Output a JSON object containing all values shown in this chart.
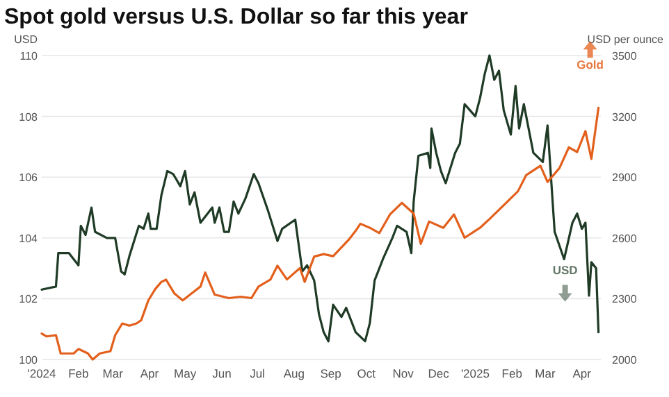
{
  "chart_data": {
    "type": "line",
    "title": "Spot gold versus U.S. Dollar so far this year",
    "ylabel": "USD",
    "y2label": "USD per ounce",
    "grid": "y",
    "xlim": [
      "2024-01-01",
      "2025-04-17"
    ],
    "xticks": [
      {
        "value": "2024-01-01",
        "label": "'2024"
      },
      {
        "value": "2024-02-01",
        "label": "Feb"
      },
      {
        "value": "2024-03-01",
        "label": "Mar"
      },
      {
        "value": "2024-04-01",
        "label": "Apr"
      },
      {
        "value": "2024-05-01",
        "label": "May"
      },
      {
        "value": "2024-06-01",
        "label": "Jun"
      },
      {
        "value": "2024-07-01",
        "label": "Jul"
      },
      {
        "value": "2024-08-01",
        "label": "Aug"
      },
      {
        "value": "2024-09-01",
        "label": "Sep"
      },
      {
        "value": "2024-10-01",
        "label": "Oct"
      },
      {
        "value": "2024-11-01",
        "label": "Nov"
      },
      {
        "value": "2024-12-01",
        "label": "Dec"
      },
      {
        "value": "2025-01-01",
        "label": "'2025"
      },
      {
        "value": "2025-02-01",
        "label": "Feb"
      },
      {
        "value": "2025-03-01",
        "label": "Mar"
      },
      {
        "value": "2025-04-01",
        "label": "Apr"
      }
    ],
    "ylim": [
      100,
      110
    ],
    "yticks": [
      100,
      102,
      104,
      106,
      108,
      110
    ],
    "y2lim": [
      2000,
      3500
    ],
    "y2ticks": [
      2000,
      2300,
      2600,
      2900,
      3200,
      3500
    ],
    "series": [
      {
        "name": "USD",
        "color": "#1f3b26",
        "x": [
          "2024-01-01",
          "2024-01-13",
          "2024-01-15",
          "2024-01-24",
          "2024-02-01",
          "2024-02-03",
          "2024-02-07",
          "2024-02-12",
          "2024-02-15",
          "2024-02-25",
          "2024-03-03",
          "2024-03-08",
          "2024-03-11",
          "2024-03-15",
          "2024-03-23",
          "2024-03-27",
          "2024-03-31",
          "2024-04-02",
          "2024-04-07",
          "2024-04-11",
          "2024-04-16",
          "2024-04-21",
          "2024-04-27",
          "2024-05-01",
          "2024-05-05",
          "2024-05-09",
          "2024-05-14",
          "2024-05-24",
          "2024-05-26",
          "2024-05-30",
          "2024-06-03",
          "2024-06-07",
          "2024-06-11",
          "2024-06-15",
          "2024-06-21",
          "2024-06-28",
          "2024-07-02",
          "2024-07-10",
          "2024-07-18",
          "2024-07-22",
          "2024-08-02",
          "2024-08-08",
          "2024-08-12",
          "2024-08-18",
          "2024-08-22",
          "2024-08-26",
          "2024-08-30",
          "2024-09-03",
          "2024-09-10",
          "2024-09-14",
          "2024-09-22",
          "2024-09-30",
          "2024-10-04",
          "2024-10-08",
          "2024-10-15",
          "2024-10-23",
          "2024-10-27",
          "2024-11-04",
          "2024-11-08",
          "2024-11-10",
          "2024-11-14",
          "2024-11-22",
          "2024-11-24",
          "2024-11-25",
          "2024-11-29",
          "2024-12-03",
          "2024-12-07",
          "2024-12-15",
          "2024-12-19",
          "2024-12-23",
          "2025-01-01",
          "2025-01-05",
          "2025-01-09",
          "2025-01-13",
          "2025-01-17",
          "2025-01-21",
          "2025-01-25",
          "2025-01-31",
          "2025-02-04",
          "2025-02-07",
          "2025-02-11",
          "2025-02-19",
          "2025-02-27",
          "2025-03-03",
          "2025-03-09",
          "2025-03-17",
          "2025-03-24",
          "2025-03-28",
          "2025-04-01",
          "2025-04-04",
          "2025-04-07",
          "2025-04-09",
          "2025-04-13",
          "2025-04-15"
        ],
        "values": [
          102.3,
          102.4,
          103.5,
          103.5,
          103.1,
          104.4,
          104.1,
          105.0,
          104.2,
          104.0,
          104.0,
          102.9,
          102.8,
          103.4,
          104.4,
          104.3,
          104.8,
          104.3,
          104.3,
          105.4,
          106.2,
          106.1,
          105.7,
          106.2,
          105.1,
          105.5,
          104.5,
          105.0,
          104.5,
          105.0,
          104.2,
          104.2,
          105.2,
          104.8,
          105.3,
          106.1,
          105.8,
          104.9,
          103.9,
          104.3,
          104.6,
          102.9,
          103.1,
          102.6,
          101.5,
          100.9,
          100.6,
          101.8,
          101.4,
          101.7,
          100.9,
          100.6,
          101.2,
          102.6,
          103.3,
          104.0,
          104.4,
          104.2,
          103.5,
          105.2,
          106.7,
          106.8,
          106.3,
          107.6,
          106.8,
          106.2,
          105.8,
          106.8,
          107.1,
          108.4,
          108.0,
          108.6,
          109.4,
          110.0,
          109.2,
          109.5,
          108.2,
          107.4,
          109.0,
          107.6,
          108.4,
          106.8,
          106.5,
          107.7,
          104.2,
          103.3,
          104.5,
          104.8,
          104.3,
          104.5,
          102.1,
          103.2,
          103.0,
          100.9
        ]
      },
      {
        "name": "Gold",
        "color": "#e35f1c",
        "axis": "y2",
        "x": [
          "2024-01-01",
          "2024-01-05",
          "2024-01-13",
          "2024-01-17",
          "2024-01-28",
          "2024-02-01",
          "2024-02-09",
          "2024-02-13",
          "2024-02-19",
          "2024-02-28",
          "2024-03-03",
          "2024-03-09",
          "2024-03-15",
          "2024-03-21",
          "2024-03-25",
          "2024-03-31",
          "2024-04-06",
          "2024-04-11",
          "2024-04-15",
          "2024-04-22",
          "2024-04-29",
          "2024-05-09",
          "2024-05-14",
          "2024-05-18",
          "2024-05-26",
          "2024-06-07",
          "2024-06-17",
          "2024-06-26",
          "2024-07-02",
          "2024-07-12",
          "2024-07-18",
          "2024-07-26",
          "2024-08-06",
          "2024-08-10",
          "2024-08-18",
          "2024-08-26",
          "2024-09-03",
          "2024-09-16",
          "2024-09-22",
          "2024-09-26",
          "2024-10-04",
          "2024-10-12",
          "2024-10-21",
          "2024-10-31",
          "2024-11-10",
          "2024-11-16",
          "2024-11-23",
          "2024-12-05",
          "2024-12-14",
          "2024-12-23",
          "2025-01-05",
          "2025-01-13",
          "2025-01-27",
          "2025-02-06",
          "2025-02-13",
          "2025-02-25",
          "2025-03-03",
          "2025-03-13",
          "2025-03-21",
          "2025-03-28",
          "2025-04-04",
          "2025-04-09",
          "2025-04-15"
        ],
        "values": [
          2128,
          2114,
          2120,
          2030,
          2030,
          2052,
          2030,
          2000,
          2030,
          2041,
          2120,
          2178,
          2167,
          2178,
          2194,
          2292,
          2349,
          2383,
          2394,
          2326,
          2292,
          2337,
          2360,
          2429,
          2320,
          2303,
          2310,
          2303,
          2360,
          2394,
          2463,
          2395,
          2451,
          2383,
          2508,
          2520,
          2510,
          2590,
          2635,
          2670,
          2650,
          2624,
          2716,
          2773,
          2720,
          2571,
          2681,
          2650,
          2716,
          2601,
          2650,
          2693,
          2773,
          2830,
          2910,
          2956,
          2876,
          2944,
          3047,
          3024,
          3127,
          2990,
          3242
        ]
      }
    ]
  }
}
